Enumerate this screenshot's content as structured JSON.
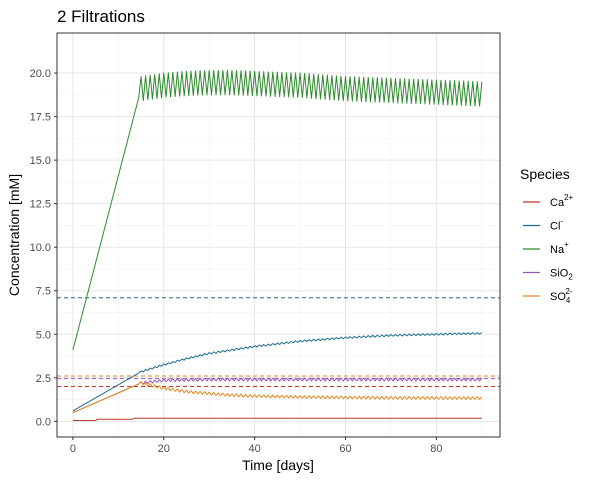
{
  "chart_data": {
    "type": "line",
    "title": "2 Filtrations",
    "xlabel": "Time [days]",
    "ylabel": "Concentration [mM]",
    "xlim": [
      -3.5,
      94
    ],
    "ylim": [
      -0.9,
      22.3
    ],
    "x_ticks": [
      0,
      20,
      40,
      60,
      80
    ],
    "x_tick_labels": [
      "0",
      "20",
      "40",
      "60",
      "80"
    ],
    "y_ticks": [
      0,
      2.5,
      5,
      7.5,
      10,
      12.5,
      15,
      17.5,
      20
    ],
    "y_tick_labels": [
      "0.0",
      "2.5",
      "5.0",
      "7.5",
      "10.0",
      "12.5",
      "15.0",
      "17.5",
      "20.0"
    ],
    "grid": true,
    "legend": {
      "title": "Species",
      "position": "right",
      "entries": [
        {
          "label": "Ca",
          "sup": "2+",
          "sub": "",
          "color": "#c0392b"
        },
        {
          "label": "Cl",
          "sup": "-",
          "sub": "",
          "color": "#1f6e8c"
        },
        {
          "label": "Na",
          "sup": "+",
          "sub": "",
          "color": "#2e8b2e"
        },
        {
          "label": "SiO",
          "sup": "",
          "sub": "2",
          "color": "#9b59b6"
        },
        {
          "label": "SO",
          "sup": "2-",
          "sub": "4",
          "color": "#e08a1e"
        }
      ]
    },
    "series": [
      {
        "name": "Ca2+",
        "color": "#c0392b",
        "x": [
          0,
          5,
          5.5,
          13,
          13.5,
          20,
          40,
          60,
          90
        ],
        "y": [
          0.05,
          0.05,
          0.12,
          0.12,
          0.18,
          0.18,
          0.18,
          0.18,
          0.18
        ]
      },
      {
        "name": "Cl-",
        "color": "#1f6e8c",
        "x": [
          0,
          5,
          10,
          15,
          20,
          25,
          30,
          35,
          40,
          45,
          50,
          55,
          60,
          65,
          70,
          75,
          80,
          85,
          90
        ],
        "y": [
          0.6,
          1.35,
          2.1,
          2.85,
          3.25,
          3.6,
          3.9,
          4.1,
          4.3,
          4.45,
          4.6,
          4.7,
          4.8,
          4.87,
          4.93,
          4.97,
          5.0,
          5.03,
          5.05
        ],
        "oscillation": 0.05
      },
      {
        "name": "Na+",
        "color": "#2e8b2e",
        "x": [
          0,
          15,
          20,
          25,
          30,
          35,
          40,
          45,
          50,
          55,
          60,
          65,
          70,
          75,
          80,
          85,
          90
        ],
        "y": [
          4.1,
          19.1,
          19.3,
          19.4,
          19.45,
          19.45,
          19.4,
          19.35,
          19.3,
          19.2,
          19.1,
          19.05,
          19.0,
          18.95,
          18.9,
          18.85,
          18.8
        ],
        "oscillation": 0.7
      },
      {
        "name": "SiO2",
        "color": "#9b59b6",
        "x": [
          0,
          15,
          20,
          30,
          40,
          60,
          90
        ],
        "y": [
          0.5,
          2.2,
          2.35,
          2.4,
          2.4,
          2.4,
          2.4
        ],
        "oscillation": 0.08
      },
      {
        "name": "SO42-",
        "color": "#e08a1e",
        "x": [
          0,
          15,
          20,
          25,
          30,
          35,
          40,
          50,
          60,
          70,
          80,
          90
        ],
        "y": [
          0.5,
          2.2,
          1.9,
          1.7,
          1.6,
          1.5,
          1.45,
          1.4,
          1.37,
          1.35,
          1.34,
          1.33
        ],
        "oscillation": 0.08
      }
    ],
    "reference_lines": [
      {
        "y": 7.1,
        "color": "#1f6e8c",
        "style": "dashed"
      },
      {
        "y": 2.6,
        "color": "#e08a1e",
        "style": "dashed"
      },
      {
        "y": 2.45,
        "color": "#9b59b6",
        "style": "dashed"
      },
      {
        "y": 2.0,
        "color": "#c0392b",
        "style": "dashed"
      }
    ]
  }
}
